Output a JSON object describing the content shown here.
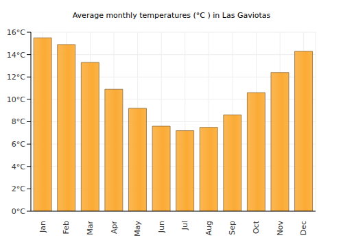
{
  "chart_data": {
    "type": "bar",
    "title": "Average monthly temperatures (°C ) in Las Gaviotas",
    "categories": [
      "Jan",
      "Feb",
      "Mar",
      "Apr",
      "May",
      "Jun",
      "Jul",
      "Aug",
      "Sep",
      "Oct",
      "Nov",
      "Dec"
    ],
    "values": [
      15.5,
      14.9,
      13.3,
      10.9,
      9.2,
      7.6,
      7.2,
      7.5,
      8.6,
      10.6,
      12.4,
      14.3
    ],
    "color": "#fbab35",
    "ylim": [
      0,
      16
    ],
    "yticks": [
      {
        "value": 0,
        "label": "0°C"
      },
      {
        "value": 2,
        "label": "2°C"
      },
      {
        "value": 4,
        "label": "4°C"
      },
      {
        "value": 6,
        "label": "6°C"
      },
      {
        "value": 8,
        "label": "8°C"
      },
      {
        "value": 10,
        "label": "10°C"
      },
      {
        "value": 12,
        "label": "12°C"
      },
      {
        "value": 14,
        "label": "14°C"
      },
      {
        "value": 16,
        "label": "16°C"
      }
    ],
    "grid": true
  }
}
